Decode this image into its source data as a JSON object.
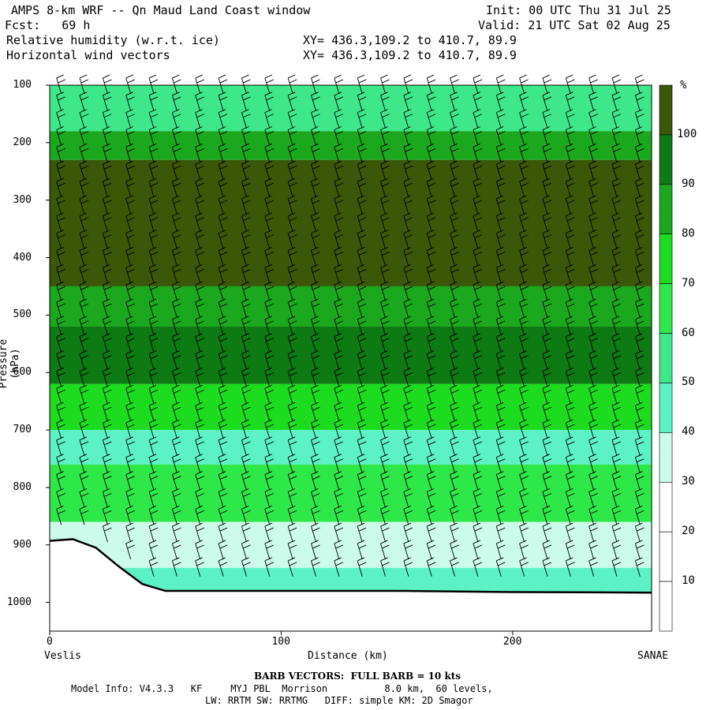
{
  "header": {
    "line1_left": "AMPS 8-km WRF -- Qn Maud Land Coast window",
    "line1_right": "Init: 00 UTC Thu 31 Jul 25",
    "line2_left": "Fcst:   69 h",
    "line2_right": "Valid: 21 UTC Sat 02 Aug 25",
    "line3_left": "Relative humidity (w.r.t. ice)",
    "line3_right": "XY= 436.3,109.2 to 410.7, 89.9",
    "line4_left": "Horizontal wind vectors",
    "line4_right": "XY= 436.3,109.2 to 410.7, 89.9"
  },
  "footer": {
    "barb_note": "BARB VECTORS:  FULL BARB = 10 kts",
    "model_line1": "Model Info: V4.3.3   KF     MYJ PBL  Morrison          8.0 km,  60 levels,",
    "model_line2": "LW: RRTM SW: RRTMG   DIFF: simple KM: 2D Smagor"
  },
  "chart_data": {
    "type": "heatmap",
    "title": "Relative humidity (w.r.t. ice)",
    "xlabel": "Distance (km)",
    "ylabel": "Pressure (hPa)",
    "x_ticks": [
      "0",
      "100",
      "200"
    ],
    "y_ticks": [
      "100",
      "200",
      "300",
      "400",
      "500",
      "600",
      "700",
      "800",
      "900",
      "1000"
    ],
    "x_end_labels": {
      "left": "Veslis",
      "right": "SANAE"
    },
    "xlim": [
      0,
      260
    ],
    "ylim": [
      1050,
      100
    ],
    "colorbar": {
      "unit": "%",
      "labels": [
        "100",
        "90",
        "80",
        "70",
        "60",
        "50",
        "40",
        "30",
        "20",
        "10"
      ],
      "levels": [
        0,
        10,
        20,
        30,
        40,
        50,
        60,
        70,
        80,
        90,
        100
      ],
      "colors": [
        "#ffffff",
        "#ffffff",
        "#ffffff",
        "#cdfbeb",
        "#5cf2c6",
        "#3ee88a",
        "#2ee84a",
        "#1ddc20",
        "#1ba81e",
        "#0e7a14",
        "#3b5708"
      ]
    },
    "terrain": {
      "distance_km": [
        0,
        10,
        20,
        30,
        40,
        50,
        60,
        100,
        150,
        200,
        260
      ],
      "pressure_hPa": [
        893,
        890,
        905,
        938,
        968,
        980,
        980,
        980,
        980,
        982,
        983
      ]
    },
    "bands": [
      {
        "p_top": 100,
        "p_bot": 180,
        "rh": 50
      },
      {
        "p_top": 180,
        "p_bot": 230,
        "rh": 80
      },
      {
        "p_top": 230,
        "p_bot": 450,
        "rh": 100
      },
      {
        "p_top": 450,
        "p_bot": 520,
        "rh": 80
      },
      {
        "p_top": 520,
        "p_bot": 620,
        "rh": 90
      },
      {
        "p_top": 620,
        "p_bot": 700,
        "rh": 70
      },
      {
        "p_top": 700,
        "p_bot": 760,
        "rh": 40
      },
      {
        "p_top": 760,
        "p_bot": 860,
        "rh": 60
      },
      {
        "p_top": 860,
        "p_bot": 940,
        "rh": 30
      },
      {
        "p_top": 940,
        "p_bot": 985,
        "rh": 40
      }
    ],
    "wind_barb_columns_km": [
      5,
      15,
      25,
      35,
      45,
      55,
      65,
      75,
      85,
      95,
      105,
      115,
      125,
      135,
      145,
      155,
      165,
      175,
      185,
      195,
      205,
      215,
      225,
      235,
      245,
      255
    ]
  }
}
